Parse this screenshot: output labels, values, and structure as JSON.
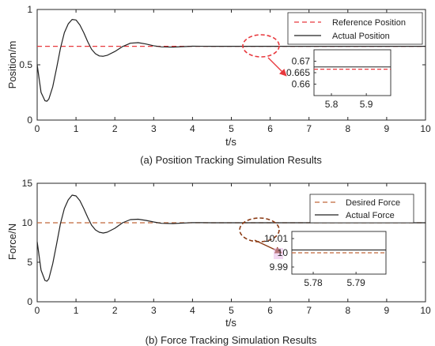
{
  "chart_data": [
    {
      "type": "line",
      "title": "(a) Position Tracking Simulation Results",
      "xlabel": "t/s",
      "ylabel": "Position/m",
      "xlim": [
        0,
        10
      ],
      "ylim": [
        0,
        1
      ],
      "x_ticks": [
        "0",
        "1",
        "2",
        "3",
        "4",
        "5",
        "6",
        "7",
        "8",
        "9",
        "10"
      ],
      "y_ticks": [
        "0",
        "0.5",
        "1"
      ],
      "grid": false,
      "legend_position": "top-right",
      "series": [
        {
          "name": "Reference Position",
          "style": "dashed",
          "color": "#e8383d",
          "x": [
            0,
            10
          ],
          "y": [
            0.667,
            0.667
          ]
        },
        {
          "name": "Actual Position",
          "style": "solid",
          "color": "#222222",
          "x": [
            0,
            0.1,
            0.2,
            0.25,
            0.3,
            0.4,
            0.5,
            0.6,
            0.7,
            0.8,
            0.9,
            1.0,
            1.1,
            1.2,
            1.3,
            1.4,
            1.5,
            1.6,
            1.7,
            1.8,
            2.0,
            2.2,
            2.4,
            2.6,
            2.8,
            3.0,
            3.2,
            3.5,
            4.0,
            4.5,
            5.0,
            6.0,
            7.0,
            8.0,
            9.0,
            10.0
          ],
          "y": [
            0.5,
            0.25,
            0.175,
            0.17,
            0.19,
            0.3,
            0.47,
            0.65,
            0.79,
            0.87,
            0.91,
            0.905,
            0.86,
            0.79,
            0.71,
            0.64,
            0.6,
            0.58,
            0.577,
            0.585,
            0.62,
            0.665,
            0.695,
            0.7,
            0.688,
            0.672,
            0.662,
            0.66,
            0.668,
            0.667,
            0.667,
            0.667,
            0.667,
            0.667,
            0.667,
            0.667
          ]
        }
      ],
      "inset": {
        "xlim": [
          5.75,
          5.97
        ],
        "ylim": [
          0.655,
          0.675
        ],
        "x_ticks": [
          "5.8",
          "5.9"
        ],
        "y_ticks": [
          "0.66",
          "0.665",
          "0.67"
        ],
        "reference_value": 0.6665,
        "actual_value": 0.6675
      }
    },
    {
      "type": "line",
      "title": "(b) Force Tracking Simulation Results",
      "xlabel": "t/s",
      "ylabel": "Force/N",
      "xlim": [
        0,
        10
      ],
      "ylim": [
        0,
        15
      ],
      "x_ticks": [
        "0",
        "1",
        "2",
        "3",
        "4",
        "5",
        "6",
        "7",
        "8",
        "9",
        "10"
      ],
      "y_ticks": [
        "0",
        "5",
        "10",
        "15"
      ],
      "grid": false,
      "legend_position": "top-right",
      "series": [
        {
          "name": "Desired Force",
          "style": "dashed",
          "color": "#c0673a",
          "x": [
            0,
            10
          ],
          "y": [
            10,
            10
          ]
        },
        {
          "name": "Actual Force",
          "style": "solid",
          "color": "#222222",
          "x": [
            0,
            0.1,
            0.2,
            0.25,
            0.3,
            0.4,
            0.5,
            0.6,
            0.7,
            0.8,
            0.9,
            1.0,
            1.1,
            1.2,
            1.3,
            1.4,
            1.5,
            1.6,
            1.7,
            1.8,
            2.0,
            2.2,
            2.4,
            2.6,
            2.8,
            3.0,
            3.2,
            3.5,
            4.0,
            4.5,
            5.0,
            6.0,
            7.0,
            8.0,
            9.0,
            10.0
          ],
          "y": [
            7.6,
            4.0,
            2.7,
            2.6,
            2.9,
            4.8,
            7.3,
            9.9,
            11.8,
            12.9,
            13.5,
            13.4,
            12.8,
            11.8,
            10.7,
            9.7,
            9.1,
            8.8,
            8.7,
            8.8,
            9.3,
            10.0,
            10.4,
            10.45,
            10.3,
            10.1,
            9.93,
            9.9,
            10.02,
            10.0,
            10.0,
            10.0,
            10.0,
            10.0,
            10.0,
            10.0
          ]
        }
      ],
      "inset": {
        "xlim": [
          5.775,
          5.797
        ],
        "ylim": [
          9.985,
          10.015
        ],
        "x_ticks": [
          "5.78",
          "5.79"
        ],
        "y_ticks": [
          "9.99",
          "10",
          "10.01"
        ],
        "reference_value": 10.0,
        "actual_value": 10.002
      }
    }
  ]
}
